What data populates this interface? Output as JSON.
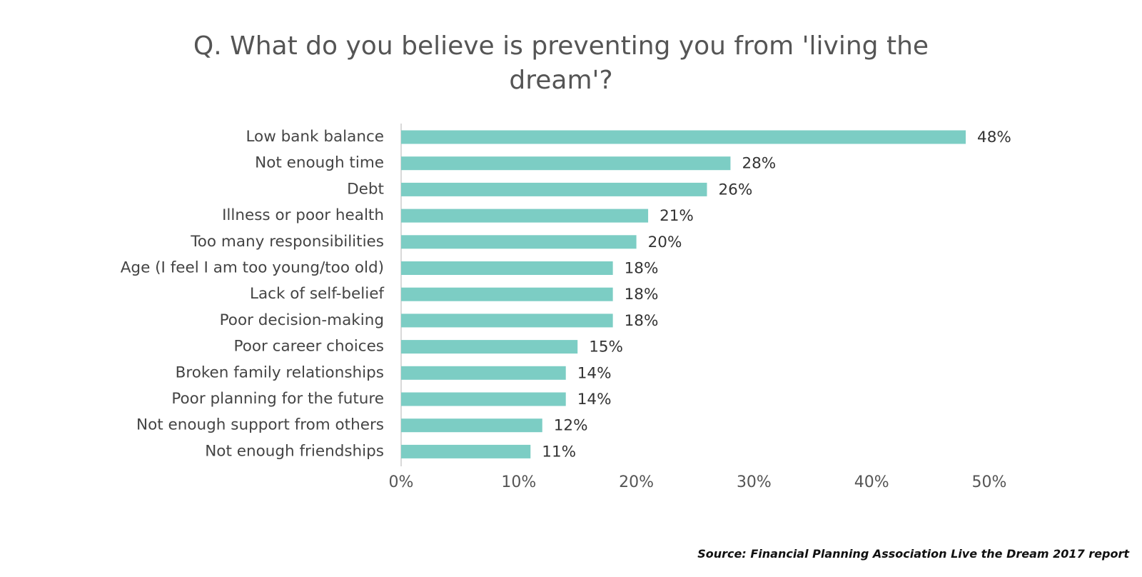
{
  "chart_data": {
    "type": "bar",
    "orientation": "horizontal",
    "title_lines": [
      "Q. What do you believe is preventing you from 'living the",
      "dream'?"
    ],
    "categories": [
      "Low bank balance",
      "Not enough time",
      "Debt",
      "Illness or poor health",
      "Too many responsibilities",
      "Age (I feel I am too young/too old)",
      "Lack of self-belief",
      "Poor decision-making",
      "Poor career choices",
      "Broken family relationships",
      "Poor planning for the future",
      "Not enough support from others",
      "Not enough friendships"
    ],
    "values": [
      48,
      28,
      26,
      21,
      20,
      18,
      18,
      18,
      15,
      14,
      14,
      12,
      11
    ],
    "value_labels": [
      "48%",
      "28%",
      "26%",
      "21%",
      "20%",
      "18%",
      "18%",
      "18%",
      "15%",
      "14%",
      "14%",
      "12%",
      "11%"
    ],
    "x_ticks": [
      0,
      10,
      20,
      30,
      40,
      50
    ],
    "x_tick_labels": [
      "0%",
      "10%",
      "20%",
      "30%",
      "40%",
      "50%"
    ],
    "xlim": [
      0,
      50
    ],
    "grid": false,
    "legend": "none",
    "bar_color": "#7ccdc4",
    "axis_color": "#d9d9d9"
  },
  "source_note": "Source: Financial Planning Association Live the Dream 2017 report"
}
